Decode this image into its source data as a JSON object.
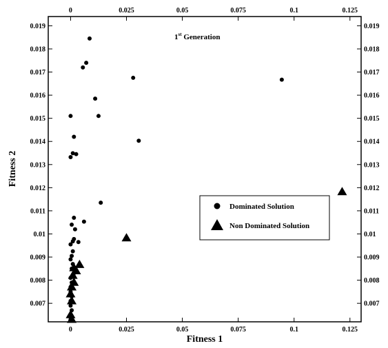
{
  "chart_data": {
    "type": "scatter",
    "xlabel": "Fitness 1",
    "ylabel": "Fitness 2",
    "xlim": [
      -0.01,
      0.13
    ],
    "ylim": [
      0.0062,
      0.0194
    ],
    "x_ticks": [
      0,
      0.025,
      0.05,
      0.075,
      0.1,
      0.125
    ],
    "x_tick_labels": [
      "0",
      "0.025",
      "0.05",
      "0.075",
      "0.1",
      "0.125"
    ],
    "y_ticks": [
      0.007,
      0.008,
      0.009,
      0.01,
      0.011,
      0.012,
      0.013,
      0.014,
      0.015,
      0.016,
      0.017,
      0.018,
      0.019
    ],
    "y_tick_labels": [
      "0.007",
      "0.008",
      "0.009",
      "0.01",
      "0.011",
      "0.012",
      "0.013",
      "0.014",
      "0.015",
      "0.016",
      "0.017",
      "0.018",
      "0.019"
    ],
    "annotation": {
      "main": "1",
      "sup": "st",
      "rest": " Generation"
    },
    "grid": false,
    "legend_position": "center-right",
    "series": [
      {
        "name": "Dominated Solution",
        "marker": "circle",
        "color": "#000000",
        "points": [
          [
            0.0085,
            0.01845
          ],
          [
            0.007,
            0.0174
          ],
          [
            0.0055,
            0.0172
          ],
          [
            0.028,
            0.01675
          ],
          [
            0.0945,
            0.01667
          ],
          [
            0.011,
            0.01585
          ],
          [
            0.0,
            0.0151
          ],
          [
            0.0125,
            0.0151
          ],
          [
            0.0015,
            0.0142
          ],
          [
            0.0305,
            0.01403
          ],
          [
            0.001,
            0.01349
          ],
          [
            0.0025,
            0.01345
          ],
          [
            0.0,
            0.01332
          ],
          [
            0.0135,
            0.01135
          ],
          [
            0.0015,
            0.0107
          ],
          [
            0.006,
            0.01053
          ],
          [
            0.0005,
            0.0104
          ],
          [
            0.002,
            0.0102
          ],
          [
            0.0015,
            0.00978
          ],
          [
            0.001,
            0.00968
          ],
          [
            0.0035,
            0.00965
          ],
          [
            0.0,
            0.00955
          ],
          [
            0.001,
            0.00925
          ],
          [
            0.0005,
            0.00905
          ],
          [
            0.0,
            0.0089
          ],
          [
            0.001,
            0.0087
          ],
          [
            0.0005,
            0.0085
          ],
          [
            0.0015,
            0.0083
          ],
          [
            0.0,
            0.0081
          ],
          [
            0.0005,
            0.0079
          ],
          [
            0.0,
            0.0077
          ],
          [
            0.0,
            0.0075
          ],
          [
            0.0005,
            0.0073
          ],
          [
            0.0,
            0.0071
          ],
          [
            0.0,
            0.0069
          ],
          [
            0.0005,
            0.0067
          ],
          [
            0.0,
            0.0065
          ],
          [
            0.0,
            0.0063
          ]
        ]
      },
      {
        "name": "Non Dominated Solution",
        "marker": "triangle",
        "color": "#000000",
        "points": [
          [
            0.1215,
            0.01182
          ],
          [
            0.025,
            0.00982
          ],
          [
            0.004,
            0.00867
          ],
          [
            0.0015,
            0.00853
          ],
          [
            0.0025,
            0.0084
          ],
          [
            0.001,
            0.0082
          ],
          [
            0.0015,
            0.0079
          ],
          [
            0.0005,
            0.0077
          ],
          [
            0.0,
            0.0074
          ],
          [
            0.0005,
            0.0071
          ],
          [
            0.0,
            0.0065
          ],
          [
            0.0005,
            0.0063
          ]
        ]
      }
    ]
  }
}
